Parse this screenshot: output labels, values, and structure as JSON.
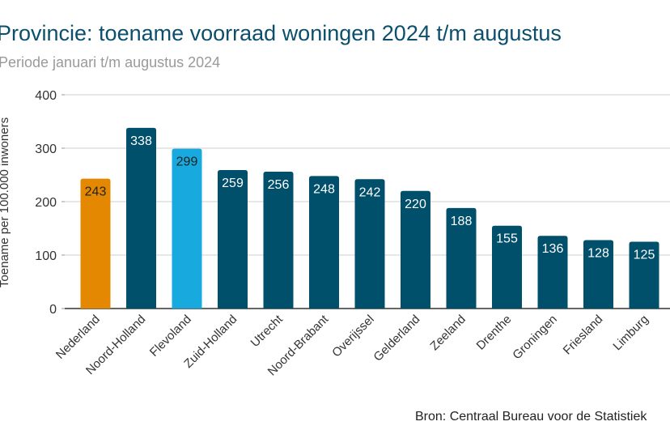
{
  "chart_data": {
    "type": "bar",
    "title": "Provincie: toename voorraad woningen 2024 t/m augustus",
    "subtitle": "Periode januari t/m augustus 2024",
    "ylabel": "Toename per 100.000 inwoners",
    "xlabel": "",
    "ylim": [
      0,
      400
    ],
    "yticks": [
      0,
      100,
      200,
      300,
      400
    ],
    "grid": true,
    "categories": [
      "Nederland",
      "Noord-Holland",
      "Flevoland",
      "Zuid-Holland",
      "Utrecht",
      "Noord-Brabant",
      "Overijssel",
      "Gelderland",
      "Zeeland",
      "Drenthe",
      "Groningen",
      "Friesland",
      "Limburg"
    ],
    "values": [
      243,
      338,
      299,
      259,
      256,
      248,
      242,
      220,
      188,
      155,
      136,
      128,
      125
    ],
    "colors": [
      "#e38800",
      "#004f6b",
      "#18a9df",
      "#004f6b",
      "#004f6b",
      "#004f6b",
      "#004f6b",
      "#004f6b",
      "#004f6b",
      "#004f6b",
      "#004f6b",
      "#004f6b",
      "#004f6b"
    ],
    "label_colors": [
      "#222222",
      "#ffffff",
      "#222222",
      "#ffffff",
      "#ffffff",
      "#ffffff",
      "#ffffff",
      "#ffffff",
      "#ffffff",
      "#ffffff",
      "#ffffff",
      "#ffffff",
      "#ffffff"
    ],
    "source": "Bron: Centraal Bureau voor de Statistiek"
  }
}
